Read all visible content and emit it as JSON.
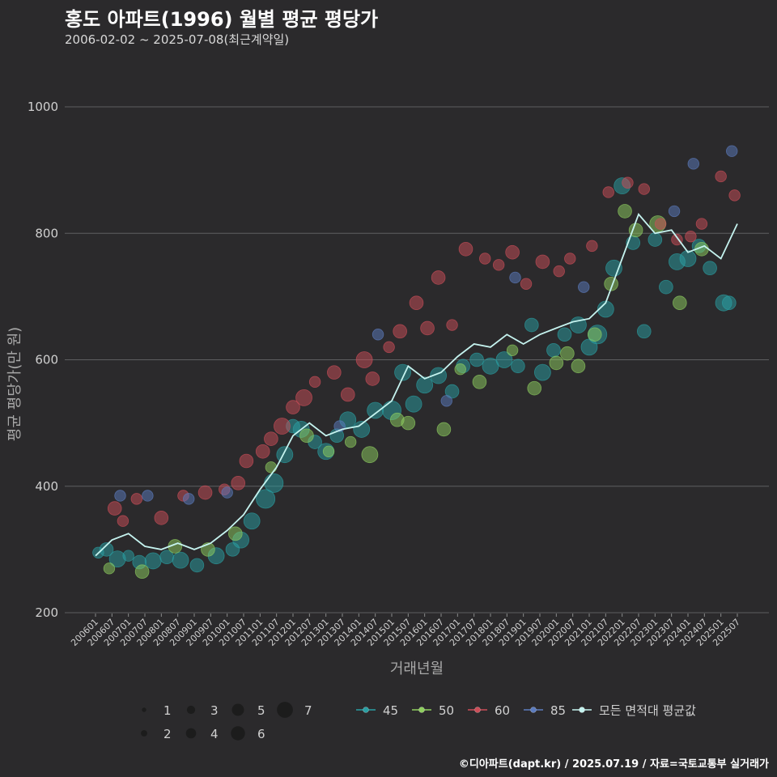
{
  "header": {
    "title": "홍도 아파트(1996) 월별 평균 평당가",
    "subtitle": "2006-02-02 ~ 2025-07-08(최근계약일)"
  },
  "footer": {
    "credit": "©디아파트(dapt.kr) / 2025.07.19 / 자료=국토교통부 실거래가"
  },
  "colors": {
    "background": "#2b2a2c",
    "gridline": "#5e5e60",
    "avg_line": "#c5f3ef",
    "area_45": "#2a9fa3",
    "area_50": "#8fcf5f",
    "area_60": "#cc4d58",
    "area_85": "#5c7cbf"
  },
  "chart_data": {
    "type": "scatter",
    "title": "홍도 아파트(1996) 월별 평균 평당가",
    "xlabel": "거래년월",
    "ylabel": "평균 평당가(만 원)",
    "ylim": [
      200,
      1000
    ],
    "yticks": [
      200,
      400,
      600,
      800,
      1000
    ],
    "xlim": [
      "2006-01",
      "2025-07"
    ],
    "xticks": [
      "200601",
      "200607",
      "200701",
      "200707",
      "200801",
      "200807",
      "200901",
      "200907",
      "201001",
      "201007",
      "201101",
      "201107",
      "201201",
      "201207",
      "201301",
      "201307",
      "201401",
      "201407",
      "201501",
      "201507",
      "201601",
      "201607",
      "201701",
      "201707",
      "201801",
      "201807",
      "201901",
      "201907",
      "202001",
      "202007",
      "202101",
      "202107",
      "202201",
      "202207",
      "202301",
      "202307",
      "202401",
      "202407",
      "202501",
      "202507"
    ],
    "grid": true,
    "legend_position": "bottom",
    "size_legend": {
      "labels": [
        "1",
        "2",
        "3",
        "4",
        "5",
        "6",
        "7"
      ],
      "values": [
        1,
        2,
        3,
        4,
        5,
        6,
        7
      ]
    },
    "series": [
      {
        "name": "45",
        "color": "#2a9fa3",
        "points": [
          [
            "2006-02",
            295,
            3
          ],
          [
            "2006-05",
            300,
            4
          ],
          [
            "2006-09",
            285,
            5
          ],
          [
            "2007-01",
            290,
            3
          ],
          [
            "2007-05",
            280,
            4
          ],
          [
            "2007-10",
            282,
            5
          ],
          [
            "2008-03",
            288,
            4
          ],
          [
            "2008-08",
            283,
            5
          ],
          [
            "2009-02",
            275,
            4
          ],
          [
            "2009-09",
            290,
            5
          ],
          [
            "2010-03",
            300,
            4
          ],
          [
            "2010-06",
            315,
            5
          ],
          [
            "2010-10",
            345,
            5
          ],
          [
            "2011-03",
            380,
            6
          ],
          [
            "2011-06",
            405,
            6
          ],
          [
            "2011-10",
            450,
            5
          ],
          [
            "2012-01",
            495,
            4
          ],
          [
            "2012-04",
            490,
            5
          ],
          [
            "2012-09",
            470,
            4
          ],
          [
            "2013-01",
            455,
            5
          ],
          [
            "2013-05",
            480,
            4
          ],
          [
            "2013-09",
            505,
            5
          ],
          [
            "2014-02",
            490,
            5
          ],
          [
            "2014-07",
            520,
            5
          ],
          [
            "2015-01",
            520,
            6
          ],
          [
            "2015-05",
            580,
            5
          ],
          [
            "2015-09",
            530,
            5
          ],
          [
            "2016-01",
            560,
            5
          ],
          [
            "2016-06",
            575,
            5
          ],
          [
            "2016-11",
            550,
            4
          ],
          [
            "2017-03",
            590,
            4
          ],
          [
            "2017-08",
            600,
            4
          ],
          [
            "2018-01",
            590,
            5
          ],
          [
            "2018-06",
            600,
            5
          ],
          [
            "2018-11",
            590,
            4
          ],
          [
            "2019-04",
            655,
            4
          ],
          [
            "2019-08",
            580,
            5
          ],
          [
            "2019-12",
            615,
            4
          ],
          [
            "2020-04",
            640,
            4
          ],
          [
            "2020-09",
            655,
            5
          ],
          [
            "2021-01",
            620,
            5
          ],
          [
            "2021-04",
            640,
            6
          ],
          [
            "2021-07",
            680,
            5
          ],
          [
            "2021-10",
            745,
            5
          ],
          [
            "2022-01",
            875,
            5
          ],
          [
            "2022-05",
            785,
            4
          ],
          [
            "2022-09",
            645,
            4
          ],
          [
            "2023-01",
            790,
            4
          ],
          [
            "2023-05",
            715,
            4
          ],
          [
            "2023-09",
            755,
            5
          ],
          [
            "2024-01",
            760,
            5
          ],
          [
            "2024-05",
            780,
            4
          ],
          [
            "2024-09",
            745,
            4
          ],
          [
            "2025-02",
            690,
            5
          ],
          [
            "2025-04",
            690,
            4
          ]
        ]
      },
      {
        "name": "50",
        "color": "#8fcf5f",
        "points": [
          [
            "2006-06",
            270,
            3
          ],
          [
            "2007-06",
            265,
            4
          ],
          [
            "2008-06",
            305,
            4
          ],
          [
            "2009-06",
            300,
            4
          ],
          [
            "2010-04",
            325,
            4
          ],
          [
            "2011-05",
            430,
            3
          ],
          [
            "2012-06",
            480,
            4
          ],
          [
            "2013-02",
            455,
            3
          ],
          [
            "2013-10",
            470,
            3
          ],
          [
            "2014-05",
            450,
            5
          ],
          [
            "2015-03",
            505,
            4
          ],
          [
            "2015-07",
            500,
            4
          ],
          [
            "2016-08",
            490,
            4
          ],
          [
            "2017-02",
            585,
            3
          ],
          [
            "2017-09",
            565,
            4
          ],
          [
            "2018-09",
            615,
            3
          ],
          [
            "2019-05",
            555,
            4
          ],
          [
            "2020-01",
            595,
            4
          ],
          [
            "2020-05",
            610,
            4
          ],
          [
            "2020-09",
            590,
            4
          ],
          [
            "2021-03",
            640,
            4
          ],
          [
            "2021-09",
            720,
            4
          ],
          [
            "2022-02",
            835,
            4
          ],
          [
            "2022-06",
            805,
            4
          ],
          [
            "2023-02",
            815,
            5
          ],
          [
            "2023-10",
            690,
            4
          ],
          [
            "2024-06",
            775,
            4
          ]
        ]
      },
      {
        "name": "60",
        "color": "#cc4d58",
        "points": [
          [
            "2006-08",
            365,
            4
          ],
          [
            "2006-11",
            345,
            3
          ],
          [
            "2007-04",
            380,
            3
          ],
          [
            "2008-01",
            350,
            4
          ],
          [
            "2008-09",
            385,
            3
          ],
          [
            "2009-05",
            390,
            4
          ],
          [
            "2009-12",
            395,
            3
          ],
          [
            "2010-05",
            405,
            4
          ],
          [
            "2010-08",
            440,
            4
          ],
          [
            "2011-02",
            455,
            4
          ],
          [
            "2011-05",
            475,
            4
          ],
          [
            "2011-09",
            495,
            5
          ],
          [
            "2012-01",
            525,
            4
          ],
          [
            "2012-05",
            540,
            5
          ],
          [
            "2012-09",
            565,
            3
          ],
          [
            "2013-04",
            580,
            4
          ],
          [
            "2013-09",
            545,
            4
          ],
          [
            "2014-03",
            600,
            5
          ],
          [
            "2014-06",
            570,
            4
          ],
          [
            "2014-12",
            620,
            3
          ],
          [
            "2015-04",
            645,
            4
          ],
          [
            "2015-10",
            690,
            4
          ],
          [
            "2016-02",
            650,
            4
          ],
          [
            "2016-06",
            730,
            4
          ],
          [
            "2016-11",
            655,
            3
          ],
          [
            "2017-04",
            775,
            4
          ],
          [
            "2017-11",
            760,
            3
          ],
          [
            "2018-04",
            750,
            3
          ],
          [
            "2018-09",
            770,
            4
          ],
          [
            "2019-02",
            720,
            3
          ],
          [
            "2019-08",
            755,
            4
          ],
          [
            "2020-02",
            740,
            3
          ],
          [
            "2020-06",
            760,
            3
          ],
          [
            "2021-02",
            780,
            3
          ],
          [
            "2021-08",
            865,
            3
          ],
          [
            "2022-03",
            880,
            3
          ],
          [
            "2022-09",
            870,
            3
          ],
          [
            "2023-03",
            815,
            3
          ],
          [
            "2023-09",
            790,
            3
          ],
          [
            "2024-02",
            795,
            3
          ],
          [
            "2024-06",
            815,
            3
          ],
          [
            "2025-01",
            890,
            3
          ],
          [
            "2025-06",
            860,
            3
          ]
        ]
      },
      {
        "name": "85",
        "color": "#5c7cbf",
        "points": [
          [
            "2006-10",
            385,
            3
          ],
          [
            "2007-08",
            385,
            3
          ],
          [
            "2008-11",
            380,
            3
          ],
          [
            "2010-01",
            390,
            3
          ],
          [
            "2013-06",
            495,
            3
          ],
          [
            "2014-08",
            640,
            3
          ],
          [
            "2016-09",
            535,
            3
          ],
          [
            "2018-10",
            730,
            3
          ],
          [
            "2020-11",
            715,
            3
          ],
          [
            "2023-08",
            835,
            3
          ],
          [
            "2024-03",
            910,
            3
          ],
          [
            "2025-05",
            930,
            3
          ]
        ]
      }
    ],
    "avg_series": {
      "name": "모든 면적대 평균값",
      "x": [
        "2006-01",
        "2006-07",
        "2007-01",
        "2007-07",
        "2008-01",
        "2008-07",
        "2009-01",
        "2009-07",
        "2010-01",
        "2010-07",
        "2011-01",
        "2011-07",
        "2012-01",
        "2012-07",
        "2013-01",
        "2013-07",
        "2014-01",
        "2014-07",
        "2015-01",
        "2015-07",
        "2016-01",
        "2016-07",
        "2017-01",
        "2017-07",
        "2018-01",
        "2018-07",
        "2019-01",
        "2019-07",
        "2020-01",
        "2020-07",
        "2021-01",
        "2021-07",
        "2022-01",
        "2022-07",
        "2023-01",
        "2023-07",
        "2024-01",
        "2024-07",
        "2025-01",
        "2025-07"
      ],
      "values": [
        290,
        315,
        325,
        305,
        300,
        310,
        300,
        310,
        330,
        355,
        395,
        430,
        480,
        500,
        480,
        490,
        495,
        515,
        535,
        590,
        570,
        580,
        605,
        625,
        620,
        640,
        625,
        640,
        650,
        660,
        665,
        690,
        760,
        830,
        800,
        805,
        770,
        780,
        760,
        815
      ]
    }
  }
}
